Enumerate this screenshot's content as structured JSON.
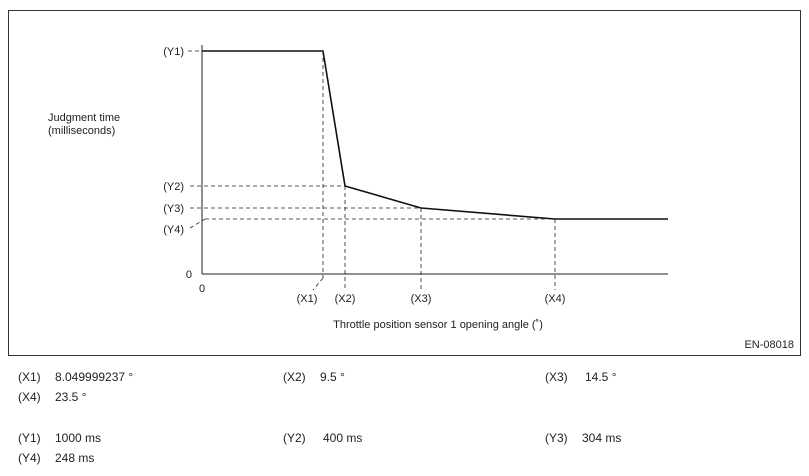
{
  "graph": {
    "y_axis_label": [
      "Judgment time",
      "(milliseconds)"
    ],
    "y_markers": [
      "(Y1)",
      "(Y2)",
      "(Y3)",
      "(Y4)",
      "0"
    ],
    "x_markers": [
      "0",
      "(X1)",
      "(X2)",
      "(X3)",
      "(X4)"
    ],
    "x_axis_label": "Throttle position sensor 1 opening angle (˚)",
    "figure_id": "EN-08018"
  },
  "legend": [
    {
      "key": "(X1)",
      "value": "8.049999237 °"
    },
    {
      "key": "(X2)",
      "value": "9.5 °"
    },
    {
      "key": "(X3)",
      "value": "14.5 °"
    },
    {
      "key": "(X4)",
      "value": "23.5 °"
    },
    {
      "key": "(Y1)",
      "value": "1000 ms"
    },
    {
      "key": "(Y2)",
      "value": "400 ms"
    },
    {
      "key": "(Y3)",
      "value": "304 ms"
    },
    {
      "key": "(Y4)",
      "value": "248 ms"
    }
  ]
}
